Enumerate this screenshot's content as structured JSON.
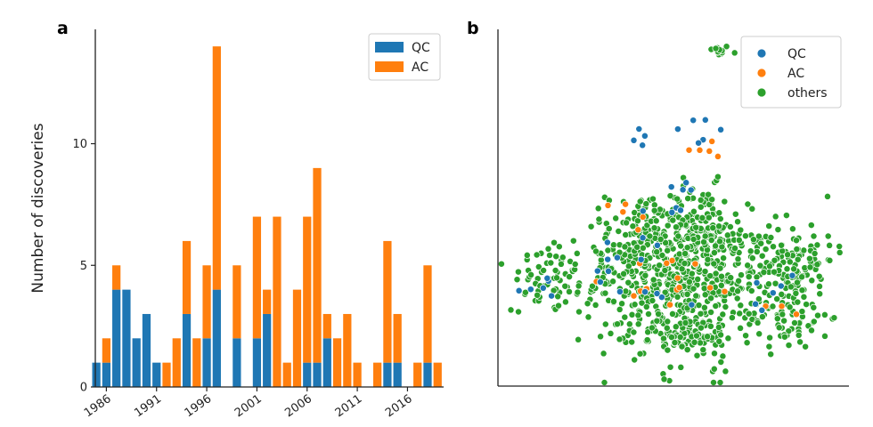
{
  "colors": {
    "qc": "#1f77b4",
    "ac": "#ff7f0e",
    "others": "#2ca02c",
    "axis": "#222222"
  },
  "chart_data": [
    {
      "panel": "a",
      "type": "bar",
      "stacked": true,
      "title": "",
      "xlabel": "",
      "ylabel": "Number of discoveries",
      "ylim": [
        0,
        14.7
      ],
      "yticks": [
        0,
        5,
        10
      ],
      "xlim": [
        1984.9,
        2019.6
      ],
      "xticks": [
        1986,
        1991,
        1996,
        2001,
        2006,
        2011,
        2016
      ],
      "legend_position": "top-right",
      "x": [
        1985,
        1986,
        1987,
        1988,
        1989,
        1990,
        1991,
        1992,
        1993,
        1994,
        1995,
        1996,
        1997,
        1998,
        1999,
        2000,
        2001,
        2002,
        2003,
        2004,
        2005,
        2006,
        2007,
        2008,
        2009,
        2010,
        2011,
        2012,
        2013,
        2014,
        2015,
        2016,
        2017,
        2018,
        2019
      ],
      "series": [
        {
          "name": "QC",
          "values": [
            1,
            1,
            4,
            4,
            2,
            3,
            1,
            0,
            0,
            3,
            0,
            2,
            4,
            0,
            2,
            0,
            2,
            3,
            0,
            0,
            0,
            1,
            1,
            2,
            0,
            0,
            0,
            0,
            0,
            1,
            1,
            0,
            0,
            1,
            0
          ]
        },
        {
          "name": "AC",
          "values": [
            0,
            1,
            1,
            0,
            0,
            0,
            0,
            1,
            2,
            3,
            2,
            3,
            10,
            0,
            3,
            0,
            5,
            1,
            7,
            1,
            4,
            6,
            8,
            1,
            2,
            3,
            1,
            0,
            1,
            5,
            2,
            0,
            1,
            4,
            1
          ]
        }
      ]
    },
    {
      "panel": "b",
      "type": "scatter",
      "title": "",
      "xlabel": "",
      "ylabel": "",
      "legend_position": "top-right",
      "series": [
        {
          "name": "QC",
          "clusters": [
            {
              "cx": 14,
              "cy": 27,
              "sx": 3,
              "sy": 2,
              "n": 6
            },
            {
              "cx": 39,
              "cy": 35,
              "sx": 7,
              "sy": 4,
              "n": 10
            },
            {
              "cx": 50,
              "cy": 52,
              "sx": 5,
              "sy": 3,
              "n": 8
            },
            {
              "cx": 49,
              "cy": 25,
              "sx": 5,
              "sy": 2,
              "n": 4
            },
            {
              "cx": 78,
              "cy": 27,
              "sx": 5,
              "sy": 3,
              "n": 6
            },
            {
              "cx": 57,
              "cy": 71,
              "sx": 4,
              "sy": 3,
              "n": 6
            },
            {
              "cx": 40,
              "cy": 70,
              "sx": 3,
              "sy": 2,
              "n": 4
            }
          ]
        },
        {
          "name": "AC",
          "clusters": [
            {
              "cx": 50,
              "cy": 30,
              "sx": 9,
              "sy": 4,
              "n": 14
            },
            {
              "cx": 58,
              "cy": 68,
              "sx": 4,
              "sy": 3,
              "n": 5
            },
            {
              "cx": 36,
              "cy": 46,
              "sx": 4,
              "sy": 3,
              "n": 5
            },
            {
              "cx": 81,
              "cy": 21,
              "sx": 3,
              "sy": 2,
              "n": 3
            }
          ]
        },
        {
          "name": "others",
          "clusters": [
            {
              "cx": 63,
              "cy": 94,
              "sx": 1.6,
              "sy": 0.8,
              "n": 15
            },
            {
              "cx": 15,
              "cy": 30,
              "sx": 5,
              "sy": 5,
              "n": 55
            },
            {
              "cx": 5,
              "cy": 22,
              "sx": 1,
              "sy": 1,
              "n": 2
            },
            {
              "cx": 29,
              "cy": 34,
              "sx": 1,
              "sy": 1,
              "n": 2
            },
            {
              "cx": 52,
              "cy": 30,
              "sx": 14,
              "sy": 9,
              "n": 520
            },
            {
              "cx": 43,
              "cy": 43,
              "sx": 6,
              "sy": 6,
              "n": 120
            },
            {
              "cx": 58,
              "cy": 44,
              "sx": 5,
              "sy": 6,
              "n": 90
            },
            {
              "cx": 84,
              "cy": 36,
              "sx": 6,
              "sy": 5,
              "n": 95
            },
            {
              "cx": 82,
              "cy": 20,
              "sx": 6,
              "sy": 5,
              "n": 70
            },
            {
              "cx": 54,
              "cy": 14,
              "sx": 7,
              "sy": 3,
              "n": 90
            },
            {
              "cx": 48,
              "cy": 4,
              "sx": 2,
              "sy": 2,
              "n": 4
            },
            {
              "cx": 62,
              "cy": 4,
              "sx": 3,
              "sy": 2,
              "n": 5
            },
            {
              "cx": 92,
              "cy": 15,
              "sx": 2,
              "sy": 2,
              "n": 3
            }
          ]
        }
      ]
    }
  ]
}
